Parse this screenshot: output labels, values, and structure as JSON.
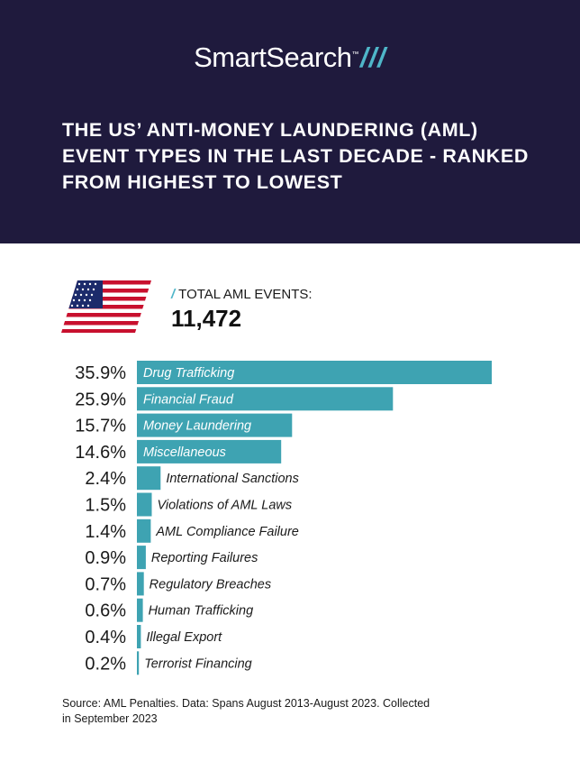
{
  "header": {
    "brand": "SmartSearch",
    "brand_mark": "///",
    "title_lines": [
      "THE US’ ANTI-MONEY LAUNDERING (AML)",
      "EVENT TYPES IN THE LAST DECADE - RANKED",
      "FROM HIGHEST TO LOWEST"
    ]
  },
  "summary": {
    "label": "TOTAL AML EVENTS:",
    "value": "11,472",
    "flag_icon": "us-flag-icon"
  },
  "colors": {
    "header_bg": "#1f1a3d",
    "bar": "#3ea3b2",
    "accent": "#4fb6c9"
  },
  "chart_data": {
    "type": "bar",
    "orientation": "horizontal",
    "unit": "%",
    "categories": [
      "Drug Trafficking",
      "Financial Fraud",
      "Money Laundering",
      "Miscellaneous",
      "International Sanctions",
      "Violations of AML Laws",
      "AML Compliance Failure",
      "Reporting Failures",
      "Regulatory Breaches",
      "Human Trafficking",
      "Illegal Export",
      "Terrorist Financing"
    ],
    "values": [
      35.9,
      25.9,
      15.7,
      14.6,
      2.4,
      1.5,
      1.4,
      0.9,
      0.7,
      0.6,
      0.4,
      0.2
    ],
    "value_labels": [
      "35.9%",
      "25.9%",
      "15.7%",
      "14.6%",
      "2.4%",
      "1.5%",
      "1.4%",
      "0.9%",
      "0.7%",
      "0.6%",
      "0.4%",
      "0.2%"
    ],
    "sorted": "descending"
  },
  "footer": {
    "source_lines": [
      "Source: AML Penalties. Data: Spans August 2013-August 2023. Collected",
      "in September 2023"
    ]
  }
}
